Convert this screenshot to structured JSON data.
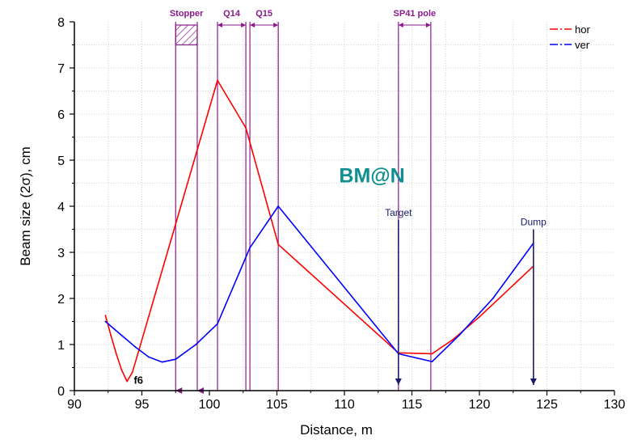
{
  "chart_data": {
    "type": "line",
    "xlabel": "Distance, m",
    "ylabel": "Beam size (2σ), cm",
    "xlim": [
      90,
      130
    ],
    "ylim": [
      0,
      8
    ],
    "xticks": [
      "90",
      "95",
      "100",
      "105",
      "110",
      "115",
      "120",
      "125",
      "130"
    ],
    "yticks": [
      "0",
      "1",
      "2",
      "3",
      "4",
      "5",
      "6",
      "7",
      "8"
    ],
    "grid": true,
    "legend_position": "top-right",
    "series": [
      {
        "name": "hor",
        "color": "#ff0000",
        "x": [
          92.3,
          92.7,
          93.1,
          93.5,
          93.9,
          94.3,
          94.8,
          100.6,
          102.7,
          105.1,
          114.0,
          116.5,
          118.0,
          120.0,
          124.0
        ],
        "y": [
          1.63,
          1.2,
          0.8,
          0.45,
          0.2,
          0.4,
          0.9,
          6.73,
          5.7,
          3.17,
          0.82,
          0.8,
          1.1,
          1.6,
          2.7
        ]
      },
      {
        "name": "ver",
        "color": "#0000ff",
        "x": [
          92.3,
          93.5,
          94.5,
          95.5,
          96.5,
          97.5,
          99.0,
          100.6,
          103.0,
          105.1,
          114.0,
          116.5,
          118.5,
          121.0,
          124.0
        ],
        "y": [
          1.5,
          1.2,
          0.95,
          0.73,
          0.62,
          0.68,
          1.0,
          1.45,
          3.1,
          4.0,
          0.8,
          0.63,
          1.2,
          2.0,
          3.2
        ]
      }
    ],
    "elements": [
      {
        "label": "Stopper",
        "x_start": 97.5,
        "x_end": 99.1
      },
      {
        "label": "Q14",
        "x_start": 100.6,
        "x_end": 102.7
      },
      {
        "label": "Q15",
        "x_start": 103.0,
        "x_end": 105.1
      },
      {
        "label": "SP41 pole",
        "x_start": 114.0,
        "x_end": 116.4
      }
    ],
    "markers": [
      {
        "label": "Target",
        "x": 114.0,
        "y": 3.7
      },
      {
        "label": "Dump",
        "x": 124.0,
        "y": 3.5
      }
    ],
    "annotations": [
      {
        "text": "f6",
        "x": 94.4,
        "y": 0.1
      },
      {
        "text": "BM@N",
        "x": 112.0,
        "y": 4.5
      }
    ],
    "colors": {
      "element": "#8b1a8b",
      "marker": "#1a1a6e",
      "watermark": "#0f8f8f"
    }
  }
}
